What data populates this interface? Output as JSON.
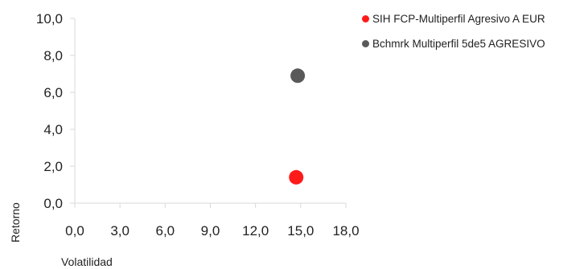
{
  "chart_data": {
    "type": "scatter",
    "xlabel": "Volatilidad",
    "ylabel": "Retorno",
    "xlim": [
      0,
      18
    ],
    "ylim": [
      0,
      10
    ],
    "x_ticks": [
      "0,0",
      "3,0",
      "6,0",
      "9,0",
      "12,0",
      "15,0",
      "18,0"
    ],
    "y_ticks": [
      "0,0",
      "2,0",
      "4,0",
      "6,0",
      "8,0",
      "10,0"
    ],
    "legend_position": "top-right",
    "grid": false,
    "series": [
      {
        "name": "SIH FCP-Multiperfil Agresivo A EUR",
        "color": "#ff1a1a",
        "x": 14.7,
        "y": 1.4
      },
      {
        "name": "Bchmrk Multiperfil 5de5 AGRESIVO",
        "color": "#595959",
        "x": 14.8,
        "y": 6.9
      }
    ]
  }
}
